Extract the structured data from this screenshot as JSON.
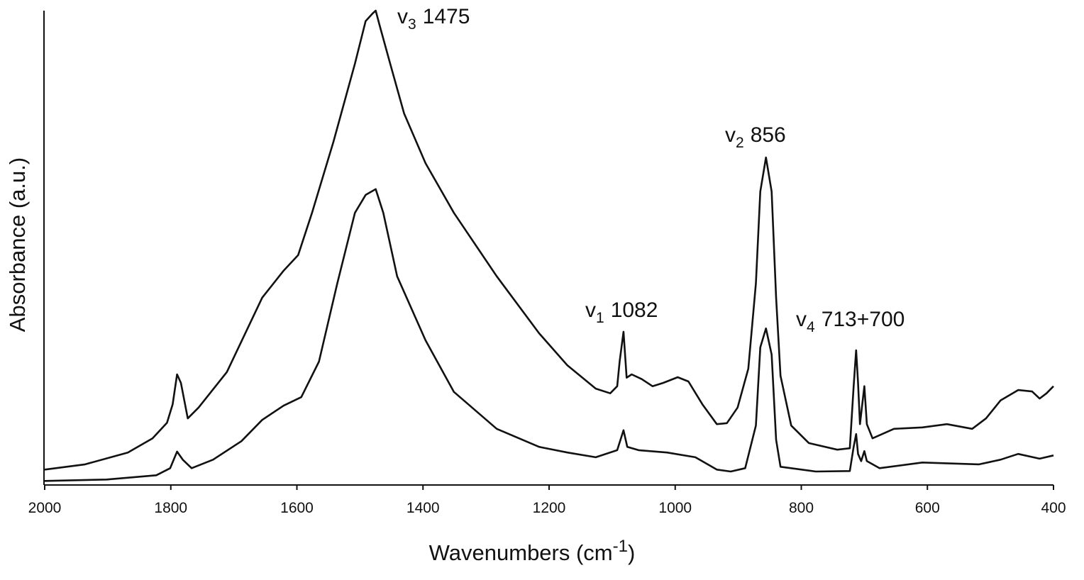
{
  "chart_data": {
    "type": "line",
    "y_label": "Absorbance (a.u.)",
    "x_label": {
      "text": "Wavenumbers (cm",
      "sup": "-1",
      "end": ")"
    },
    "xlim": [
      2000,
      400
    ],
    "xticks": [
      2000,
      1800,
      1600,
      1400,
      1200,
      1000,
      800,
      600,
      400
    ],
    "ylim": [
      0,
      100
    ],
    "color": "#111111",
    "annotations": [
      {
        "base": "v",
        "sub": "3",
        "rest": "1475"
      },
      {
        "base": "v",
        "sub": "2",
        "rest": "856"
      },
      {
        "base": "v",
        "sub": "1",
        "rest": "1082"
      },
      {
        "base": "v",
        "sub": "4",
        "rest": "713+700"
      }
    ],
    "series": [
      {
        "color": "#111111",
        "x": [
          2000,
          1936,
          1868,
          1829,
          1806,
          1797,
          1790,
          1784,
          1773,
          1756,
          1711,
          1655,
          1621,
          1598,
          1576,
          1542,
          1508,
          1491,
          1480,
          1475,
          1469,
          1452,
          1430,
          1396,
          1351,
          1283,
          1216,
          1171,
          1126,
          1103,
          1092,
          1088,
          1082,
          1077,
          1069,
          1053,
          1036,
          1019,
          996,
          979,
          957,
          934,
          918,
          901,
          884,
          872,
          865,
          856,
          847,
          840,
          833,
          816,
          788,
          743,
          723,
          717,
          713,
          710,
          707,
          700,
          696,
          687,
          653,
          608,
          569,
          529,
          507,
          484,
          456,
          434,
          422,
          411,
          400
        ],
        "values": [
          3.1,
          4.2,
          6.7,
          9.7,
          13.0,
          16.9,
          23.2,
          21.4,
          13.9,
          16.2,
          23.7,
          39.4,
          45.1,
          48.4,
          57.3,
          72.3,
          88.8,
          97.8,
          99.4,
          100,
          97.0,
          88.8,
          78.3,
          67.8,
          57.3,
          43.9,
          31.9,
          25.1,
          20.2,
          19.2,
          20.7,
          26,
          32.2,
          22.5,
          23.2,
          22.2,
          20.7,
          21.4,
          22.6,
          21.7,
          16.9,
          12.7,
          12.9,
          16.2,
          24.4,
          42.4,
          61.8,
          69.0,
          61.8,
          39.4,
          22.9,
          12.4,
          8.7,
          7.3,
          7.6,
          20.7,
          28.3,
          21.4,
          12.7,
          20.7,
          12.7,
          9.7,
          11.7,
          12.0,
          12.7,
          11.7,
          13.9,
          17.7,
          19.9,
          19.6,
          18.1,
          19.2,
          20.7
        ]
      },
      {
        "color": "#111111",
        "x": [
          2000,
          1902,
          1823,
          1801,
          1790,
          1781,
          1767,
          1733,
          1688,
          1655,
          1621,
          1593,
          1565,
          1536,
          1508,
          1491,
          1475,
          1463,
          1441,
          1396,
          1351,
          1283,
          1216,
          1171,
          1126,
          1092,
          1082,
          1076,
          1058,
          1013,
          968,
          934,
          912,
          889,
          872,
          865,
          856,
          847,
          840,
          833,
          777,
          723,
          717,
          713,
          710,
          705,
          700,
          696,
          676,
          608,
          518,
          484,
          456,
          422,
          400
        ],
        "values": [
          0.7,
          1.0,
          1.9,
          3.4,
          6.9,
          5.2,
          3.4,
          5.2,
          9.1,
          13.6,
          16.6,
          18.4,
          25.9,
          42.4,
          57.3,
          61.1,
          62.3,
          57.3,
          43.9,
          30.4,
          19.5,
          11.7,
          7.9,
          6.7,
          5.7,
          7.2,
          11.4,
          7.9,
          7.2,
          6.7,
          5.7,
          3.1,
          2.7,
          3.4,
          12.4,
          28.9,
          32.9,
          27.4,
          9.4,
          3.7,
          2.7,
          2.8,
          7.9,
          10.6,
          6.4,
          4.9,
          7.0,
          4.9,
          3.4,
          4.6,
          4.2,
          5.2,
          6.4,
          5.4,
          6.1
        ]
      }
    ]
  }
}
